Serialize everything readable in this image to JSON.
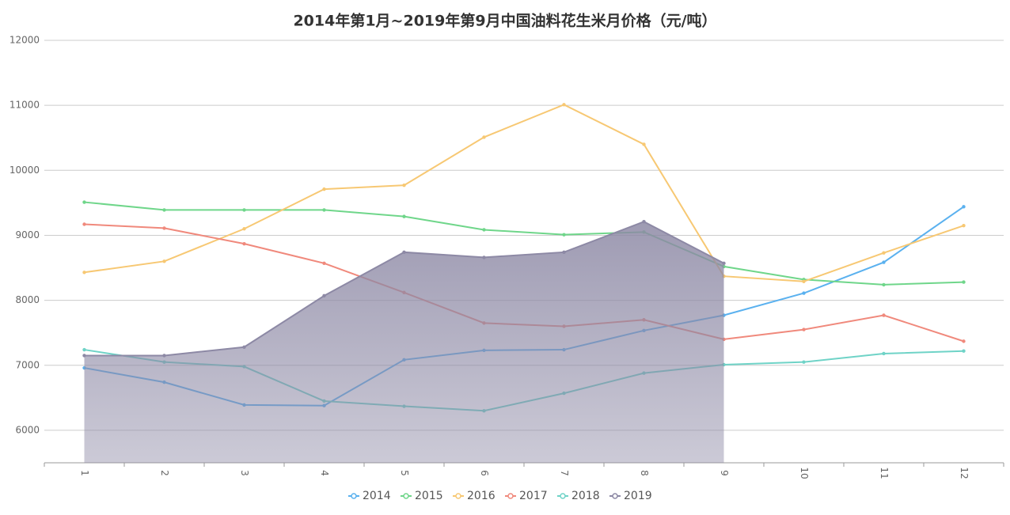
{
  "chart_data": {
    "type": "line",
    "title": "2014年第1月~2019年第9月中国油料花生米月价格（元/吨）",
    "categories": [
      "1",
      "2",
      "3",
      "4",
      "5",
      "6",
      "7",
      "8",
      "9",
      "10",
      "11",
      "12"
    ],
    "ylim": [
      5500,
      12000
    ],
    "yticks": [
      6000,
      7000,
      8000,
      9000,
      10000,
      11000,
      12000
    ],
    "grid": true,
    "legend": "bottom",
    "series": [
      {
        "name": "2014",
        "color": "#5ab1ef",
        "values": [
          6960,
          6740,
          6390,
          6380,
          7085,
          7230,
          7240,
          7535,
          7770,
          8110,
          8585,
          9440
        ]
      },
      {
        "name": "2015",
        "color": "#6fd68a",
        "values": [
          9510,
          9390,
          9390,
          9390,
          9290,
          9085,
          9010,
          9050,
          8520,
          8320,
          8240,
          8280
        ]
      },
      {
        "name": "2016",
        "color": "#f7c873",
        "values": [
          8430,
          8600,
          9100,
          9710,
          9770,
          10510,
          11010,
          10400,
          8370,
          8290,
          8730,
          9150
        ]
      },
      {
        "name": "2017",
        "color": "#f0897c",
        "values": [
          9170,
          9110,
          8870,
          8570,
          8120,
          7650,
          7600,
          7700,
          7400,
          7550,
          7770,
          7370
        ]
      },
      {
        "name": "2018",
        "color": "#6fd3c7",
        "values": [
          7240,
          7050,
          6980,
          6450,
          6370,
          6300,
          6570,
          6880,
          7010,
          7050,
          7180,
          7220
        ]
      },
      {
        "name": "2019",
        "color": "#8d89a5",
        "area": true,
        "values": [
          7150,
          7150,
          7280,
          8070,
          8740,
          8660,
          8740,
          9210,
          8570,
          null,
          null,
          null
        ]
      }
    ]
  }
}
